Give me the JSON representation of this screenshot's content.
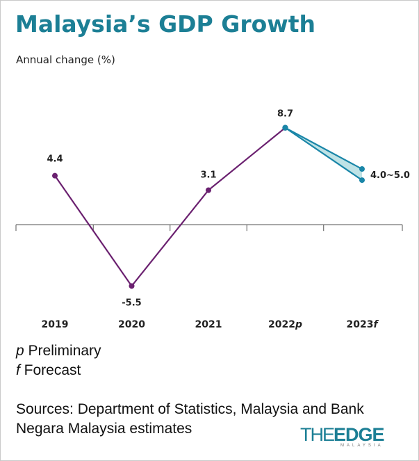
{
  "title": "Malaysia’s GDP Growth",
  "subtitle": "Annual change (%)",
  "chart_data": {
    "type": "line",
    "ylabel": "Annual change (%)",
    "categories": [
      "2019",
      "2020",
      "2021",
      "2022",
      "2023"
    ],
    "category_labels": [
      {
        "text": "2019",
        "suffix": ""
      },
      {
        "text": "2020",
        "suffix": ""
      },
      {
        "text": "2021",
        "suffix": ""
      },
      {
        "text": "2022",
        "suffix": "p"
      },
      {
        "text": "2023",
        "suffix": "f"
      }
    ],
    "series": [
      {
        "values": [
          4.4,
          -5.5,
          3.1,
          8.7,
          null
        ],
        "color": "#6b2170"
      },
      {
        "values": [
          null,
          null,
          null,
          8.7,
          5.0
        ],
        "color": "#1a86a8"
      },
      {
        "values": [
          null,
          null,
          null,
          8.7,
          4.0
        ],
        "color": "#1a86a8"
      }
    ],
    "forecast_band": {
      "from": "2022",
      "to": "2023",
      "low": 4.0,
      "high": 5.0,
      "fill": "#bfe3e6"
    },
    "data_labels": [
      "4.4",
      "-5.5",
      "3.1",
      "8.7",
      "4.0~5.0"
    ],
    "ylim": [
      -7.6,
      13.3
    ],
    "baseline": 0,
    "grid": false
  },
  "notes": [
    {
      "symbol": "p",
      "text": " Preliminary"
    },
    {
      "symbol": "f",
      "text": " Forecast"
    }
  ],
  "sources": "Sources: Department of Statistics, Malaysia and Bank Negara Malaysia estimates",
  "logo": {
    "main_thin": "THE",
    "main_bold": "EDGE",
    "sub": "MALAYSIA"
  },
  "colors": {
    "title": "#1c7f95",
    "actual_line": "#6b2170",
    "forecast_line": "#1a86a8",
    "forecast_fill": "#bfe3e6"
  }
}
